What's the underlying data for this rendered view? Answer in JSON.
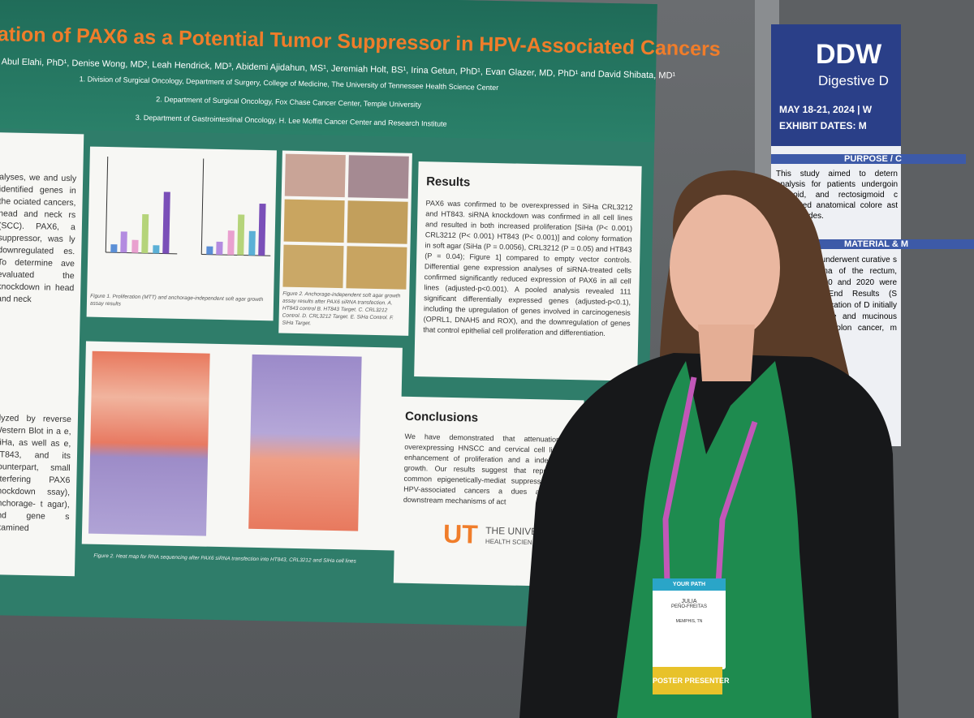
{
  "poster": {
    "title": "ation of PAX6 as a Potential Tumor Suppressor in HPV-Associated Cancers",
    "authors": ", Abul Elahi, PhD¹, Denise Wong, MD², Leah Hendrick, MD³, Abidemi Ajidahun, MS¹, Jeremiah Holt, BS¹, Irina Getun, PhD¹, Evan Glazer, MD, PhD¹ and David Shibata, MD¹",
    "affiliations": [
      "1.  Division of Surgical Oncology, Department of Surgery, College of Medicine, The University of Tennessee Health Science Center",
      "2.  Department of Surgical Oncology, Fox Chase Cancer Center, Temple University",
      "3.  Department of Gastrointestinal Oncology, H. Lee Moffitt Cancer Center and Research Institute"
    ],
    "intro_text": "alyses, we and usly identified genes in the ociated cancers, head and neck rs (SCC). PAX6, a suppressor, was ly downregulated es. To determine ave evaluated the knockdown in head and neck",
    "methods_text": "alyzed by reverse Western Blot in a e, SiHa, as well as e, HT843, and its counterpart, small interfering PAX6 knockdown ssay), anchorage- t agar), and gene s examined",
    "figure1_caption": "Figure 1. Proliferation (MTT) and anchorage-independent soft agar growth assay results",
    "figure2_caption": "Figure 2. Anchorage-independent soft agar growth assay results after PAX6 siRNA transfection. A. HT843 control B. HT843 Target. C. CRL3212 Control. D. CRL3212 Target. E. SiHa Control. F. SiHa Target.",
    "heatmap_caption": "Figure 2. Heat map for RNA sequencing after PAX6 siRNA transfection into HT843, CRL3212 and SiHa cell lines",
    "results_heading": "Results",
    "results_text": "PAX6 was confirmed to be overexpressed in SiHa CRL3212 and HT843. siRNA knockdown was confirmed in all cell lines and resulted in both increased proliferation [SiHa (P< 0.001) CRL3212 (P< 0.001) HT843 (P< 0.001)] and colony formation in soft agar (SiHa (P = 0.0056), CRL3212 (P = 0.05) and HT843 (P = 0.04); Figure 1] compared to empty vector controls. Differential gene expression analyses of siRNA-treated cells confirmed significantly reduced expression of PAX6 in all cell lines (adjusted-p<0.001). A pooled analysis revealed 111 significant differentially expressed genes (adjusted-p<0.1), including the upregulation of genes involved in carcinogenesis (OPRL1, DNAH5 and ROX), and the downregulation of genes that control epithelial cell proliferation and differentiation.",
    "conclusions_heading": "Conclusions",
    "conclusions_text": "We have demonstrated that attenuation of overexpressing HNSCC and cervical cell lines re enhancement of proliferation and a independent growth. Our results suggest that represent a common epigenetically-mediat suppressor across HPV-associated cancers a dues as to its downstream mechanisms of act",
    "logo": "UT",
    "logo_text": "THE UNIVERSITY OF TENNE",
    "logo_subtext": "HEALTH SCIEN"
  },
  "side_poster": {
    "brand": "DDW",
    "subtitle": "Digestive D",
    "dates": "MAY 18-21, 2024 | W",
    "exhibit": "EXHIBIT DATES: M",
    "purpose_heading": "PURPOSE / C",
    "purpose_text": "This study aimed to detern analysis for patients undergoin sigmoid, and rectosigmoid c cumented anatomical colore ast two decades.",
    "materials_heading": "MATERIAL & M",
    "materials_text": "who underwent curative s rcinoma of the rectum, sig 000 and 2020 were iden End Results (S Classification of D initially diagnose and mucinous adeno colon cancer, m synchro"
  },
  "badge": {
    "header": "YOUR PATH",
    "name": "JULIA",
    "surname": "PEÑO-FREITAS",
    "city": "MEMPHIS, TN",
    "ribbon": "POSTER PRESENTER"
  }
}
